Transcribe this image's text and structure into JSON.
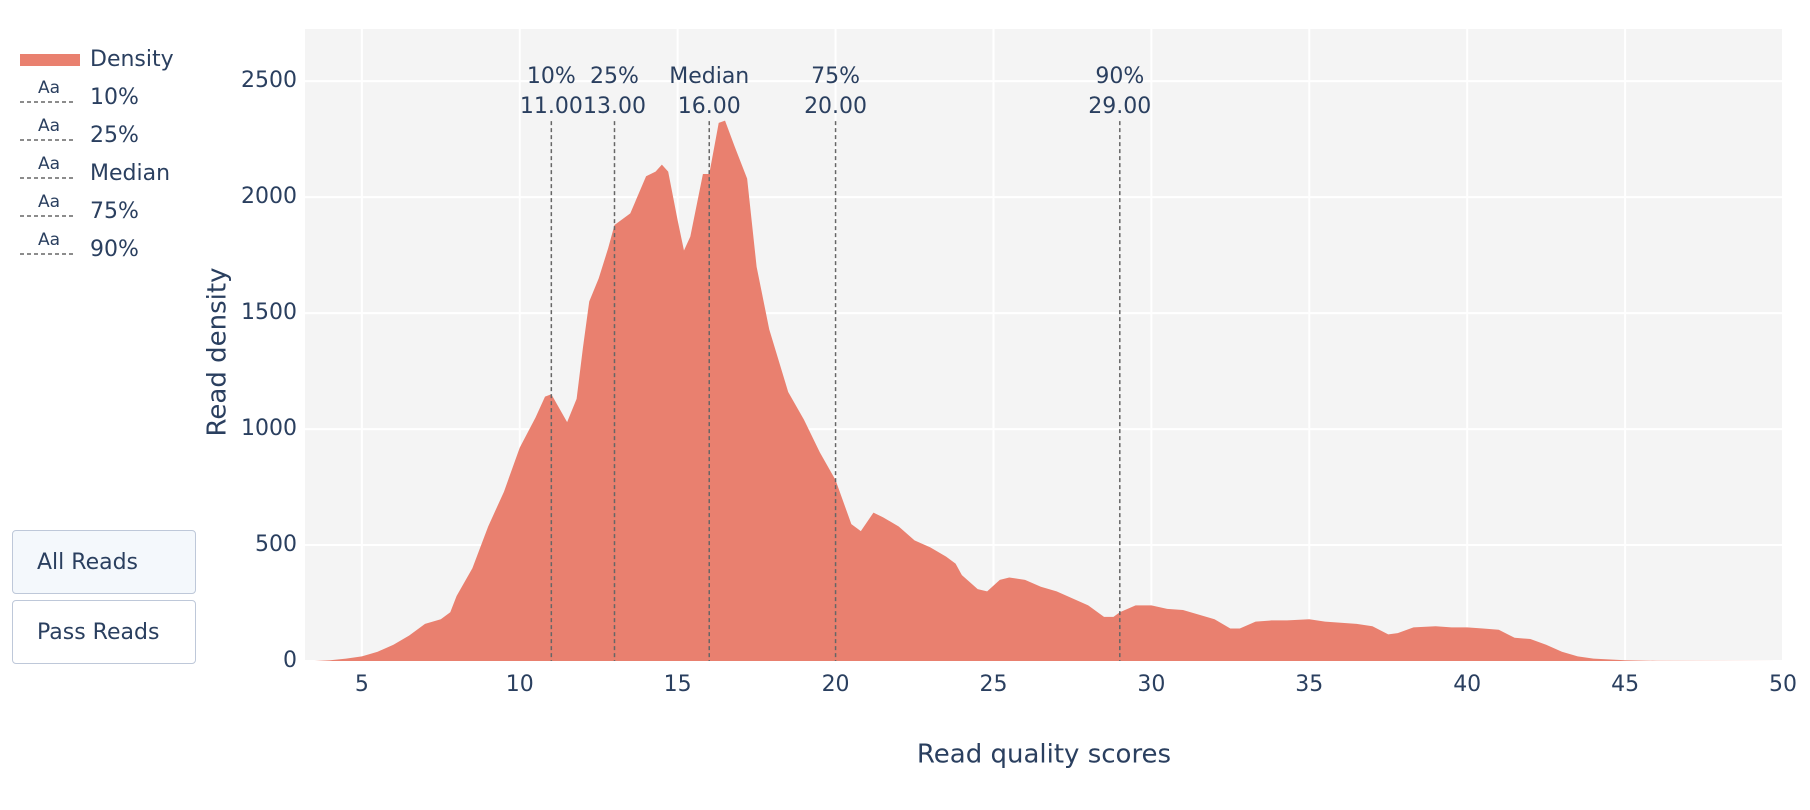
{
  "chart_data": {
    "type": "area",
    "x_label": "Read quality scores",
    "y_label": "Read density",
    "x": [
      3.5,
      4,
      4.5,
      5,
      5.5,
      6,
      6.5,
      7,
      7.5,
      7.8,
      8,
      8.5,
      9,
      9.5,
      10,
      10.5,
      10.8,
      11,
      11.5,
      11.8,
      12,
      12.2,
      12.5,
      12.8,
      13,
      13.5,
      14,
      14.3,
      14.5,
      14.7,
      15,
      15.2,
      15.4,
      15.8,
      16,
      16.3,
      16.5,
      16.8,
      17.2,
      17.5,
      17.9,
      18.5,
      19,
      19.5,
      20,
      20.5,
      20.8,
      21.2,
      21.5,
      22,
      22.5,
      23,
      23.5,
      23.8,
      24,
      24.5,
      24.8,
      25.2,
      25.5,
      26,
      26.5,
      27,
      27.5,
      28,
      28.5,
      28.8,
      29,
      29.5,
      30,
      30.5,
      31,
      31.5,
      32,
      32.5,
      32.8,
      33.3,
      33.8,
      34.3,
      35,
      35.5,
      36,
      36.5,
      37,
      37.5,
      37.8,
      38.3,
      39,
      39.5,
      40,
      40.5,
      41,
      41.5,
      42,
      42.5,
      43,
      43.5,
      44,
      45,
      46,
      50
    ],
    "series": [
      {
        "name": "Density",
        "color": "#e9806f",
        "values": [
          0,
          3,
          10,
          20,
          40,
          70,
          110,
          160,
          180,
          210,
          280,
          400,
          580,
          730,
          920,
          1050,
          1140,
          1150,
          1030,
          1130,
          1350,
          1550,
          1650,
          1780,
          1880,
          1930,
          2090,
          2110,
          2140,
          2110,
          1900,
          1770,
          1830,
          2100,
          2100,
          2320,
          2330,
          2220,
          2080,
          1700,
          1430,
          1160,
          1040,
          900,
          780,
          590,
          560,
          640,
          620,
          580,
          520,
          490,
          450,
          420,
          370,
          310,
          300,
          350,
          360,
          350,
          320,
          300,
          270,
          240,
          190,
          190,
          210,
          240,
          240,
          225,
          220,
          200,
          180,
          140,
          140,
          170,
          175,
          175,
          180,
          170,
          165,
          160,
          150,
          115,
          120,
          145,
          150,
          145,
          145,
          140,
          135,
          100,
          95,
          70,
          40,
          20,
          10,
          3,
          1,
          0
        ]
      }
    ],
    "vlines": [
      {
        "name": "10%",
        "x": 11,
        "x_label": "11.00"
      },
      {
        "name": "25%",
        "x": 13,
        "x_label": "13.00"
      },
      {
        "name": "Median",
        "x": 16,
        "x_label": "16.00"
      },
      {
        "name": "75%",
        "x": 20,
        "x_label": "20.00"
      },
      {
        "name": "90%",
        "x": 29,
        "x_label": "29.00"
      }
    ],
    "legend_symbol": "Aa",
    "xlim": [
      3.2,
      50
    ],
    "xticks": [
      5,
      10,
      15,
      20,
      25,
      30,
      35,
      40,
      45,
      50
    ],
    "ylim": [
      0,
      2725
    ],
    "yticks": [
      0,
      500,
      1000,
      1500,
      2000,
      2500
    ],
    "grid": true,
    "legend": "top-left"
  },
  "buttons": [
    "All Reads",
    "Pass Reads"
  ]
}
